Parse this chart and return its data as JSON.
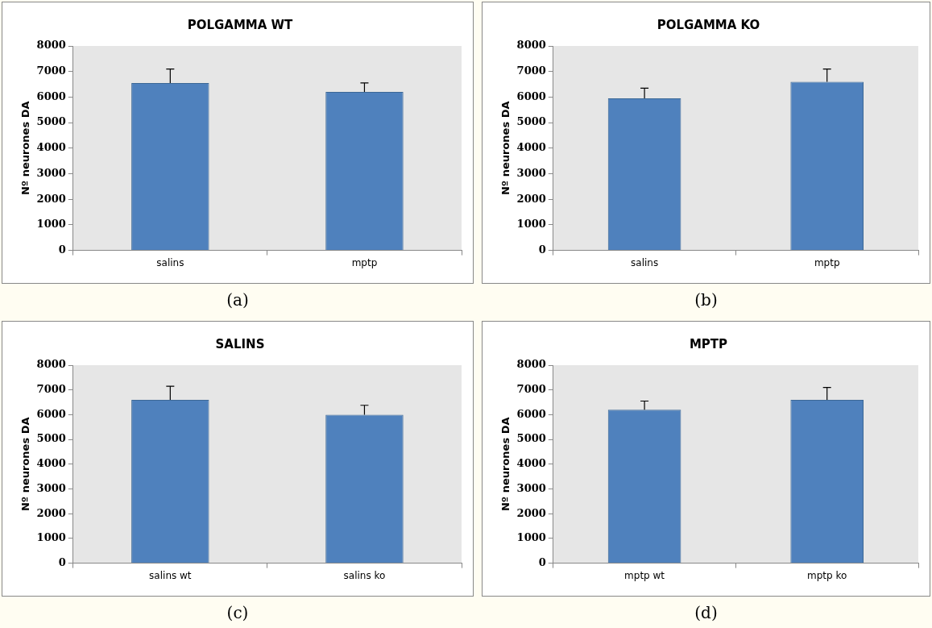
{
  "chart_data": [
    {
      "type": "bar",
      "title": "POLGAMMA WT",
      "ylabel": "Nº neurones DA",
      "categories": [
        "salins",
        "mptp"
      ],
      "values": [
        6550,
        6200
      ],
      "errors": [
        [
          6550,
          7100
        ],
        [
          6200,
          6550
        ]
      ],
      "color": "#4f81bd",
      "ylim": [
        0,
        8000
      ],
      "yticks": [
        0,
        1000,
        2000,
        3000,
        4000,
        5000,
        6000,
        7000,
        8000
      ],
      "grid": false,
      "legend": false,
      "annotations": [
        "(a)"
      ]
    },
    {
      "type": "bar",
      "title": "POLGAMMA KO",
      "ylabel": "Nº neurones DA",
      "categories": [
        "salins",
        "mptp"
      ],
      "values": [
        5950,
        6600
      ],
      "errors": [
        [
          5950,
          6350
        ],
        [
          6600,
          7100
        ]
      ],
      "color": "#4f81bd",
      "ylim": [
        0,
        8000
      ],
      "yticks": [
        0,
        1000,
        2000,
        3000,
        4000,
        5000,
        6000,
        7000,
        8000
      ],
      "grid": false,
      "legend": false,
      "annotations": [
        "(b)"
      ]
    },
    {
      "type": "bar",
      "title": "SALINS",
      "ylabel": "Nº neurones DA",
      "categories": [
        "salins wt",
        "salins ko"
      ],
      "values": [
        6600,
        6000
      ],
      "errors": [
        [
          6600,
          7150
        ],
        [
          6000,
          6380
        ]
      ],
      "color": "#4f81bd",
      "ylim": [
        0,
        8000
      ],
      "yticks": [
        0,
        1000,
        2000,
        3000,
        4000,
        5000,
        6000,
        7000,
        8000
      ],
      "grid": false,
      "legend": false,
      "annotations": [
        "(c)"
      ]
    },
    {
      "type": "bar",
      "title": "MPTP",
      "ylabel": "Nº neurones DA",
      "categories": [
        "mptp wt",
        "mptp ko"
      ],
      "values": [
        6200,
        6600
      ],
      "errors": [
        [
          6200,
          6550
        ],
        [
          6600,
          7100
        ]
      ],
      "color": "#4f81bd",
      "ylim": [
        0,
        8000
      ],
      "yticks": [
        0,
        1000,
        2000,
        3000,
        4000,
        5000,
        6000,
        7000,
        8000
      ],
      "grid": false,
      "legend": false,
      "annotations": [
        "(d)"
      ]
    }
  ]
}
